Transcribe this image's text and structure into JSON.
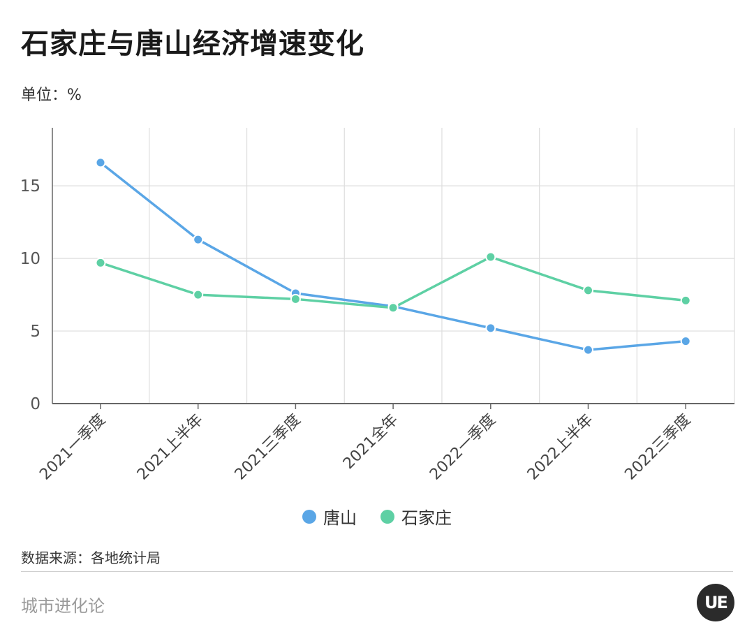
{
  "header": {
    "title": "石家庄与唐山经济增速变化",
    "unit_label": "单位：%"
  },
  "footer": {
    "source": "数据来源：各地统计局",
    "brand": "城市进化论",
    "logo_text": "UE"
  },
  "colors": {
    "tangshan": "#5aa6e6",
    "shijiazhuang": "#5ed0a4",
    "grid": "#dddddd",
    "axis": "#666666"
  },
  "chart_data": {
    "type": "line",
    "categories": [
      "2021一季度",
      "2021上半年",
      "2021三季度",
      "2021全年",
      "2022一季度",
      "2022上半年",
      "2022三季度"
    ],
    "series": [
      {
        "name": "唐山",
        "values": [
          16.6,
          11.3,
          7.6,
          6.7,
          5.2,
          3.7,
          4.3
        ]
      },
      {
        "name": "石家庄",
        "values": [
          9.7,
          7.5,
          7.2,
          6.6,
          10.1,
          7.8,
          7.1
        ]
      }
    ],
    "ylim": [
      0,
      19
    ],
    "yticks": [
      0,
      5,
      10,
      15
    ],
    "grid": true,
    "legend": "bottom-center"
  }
}
